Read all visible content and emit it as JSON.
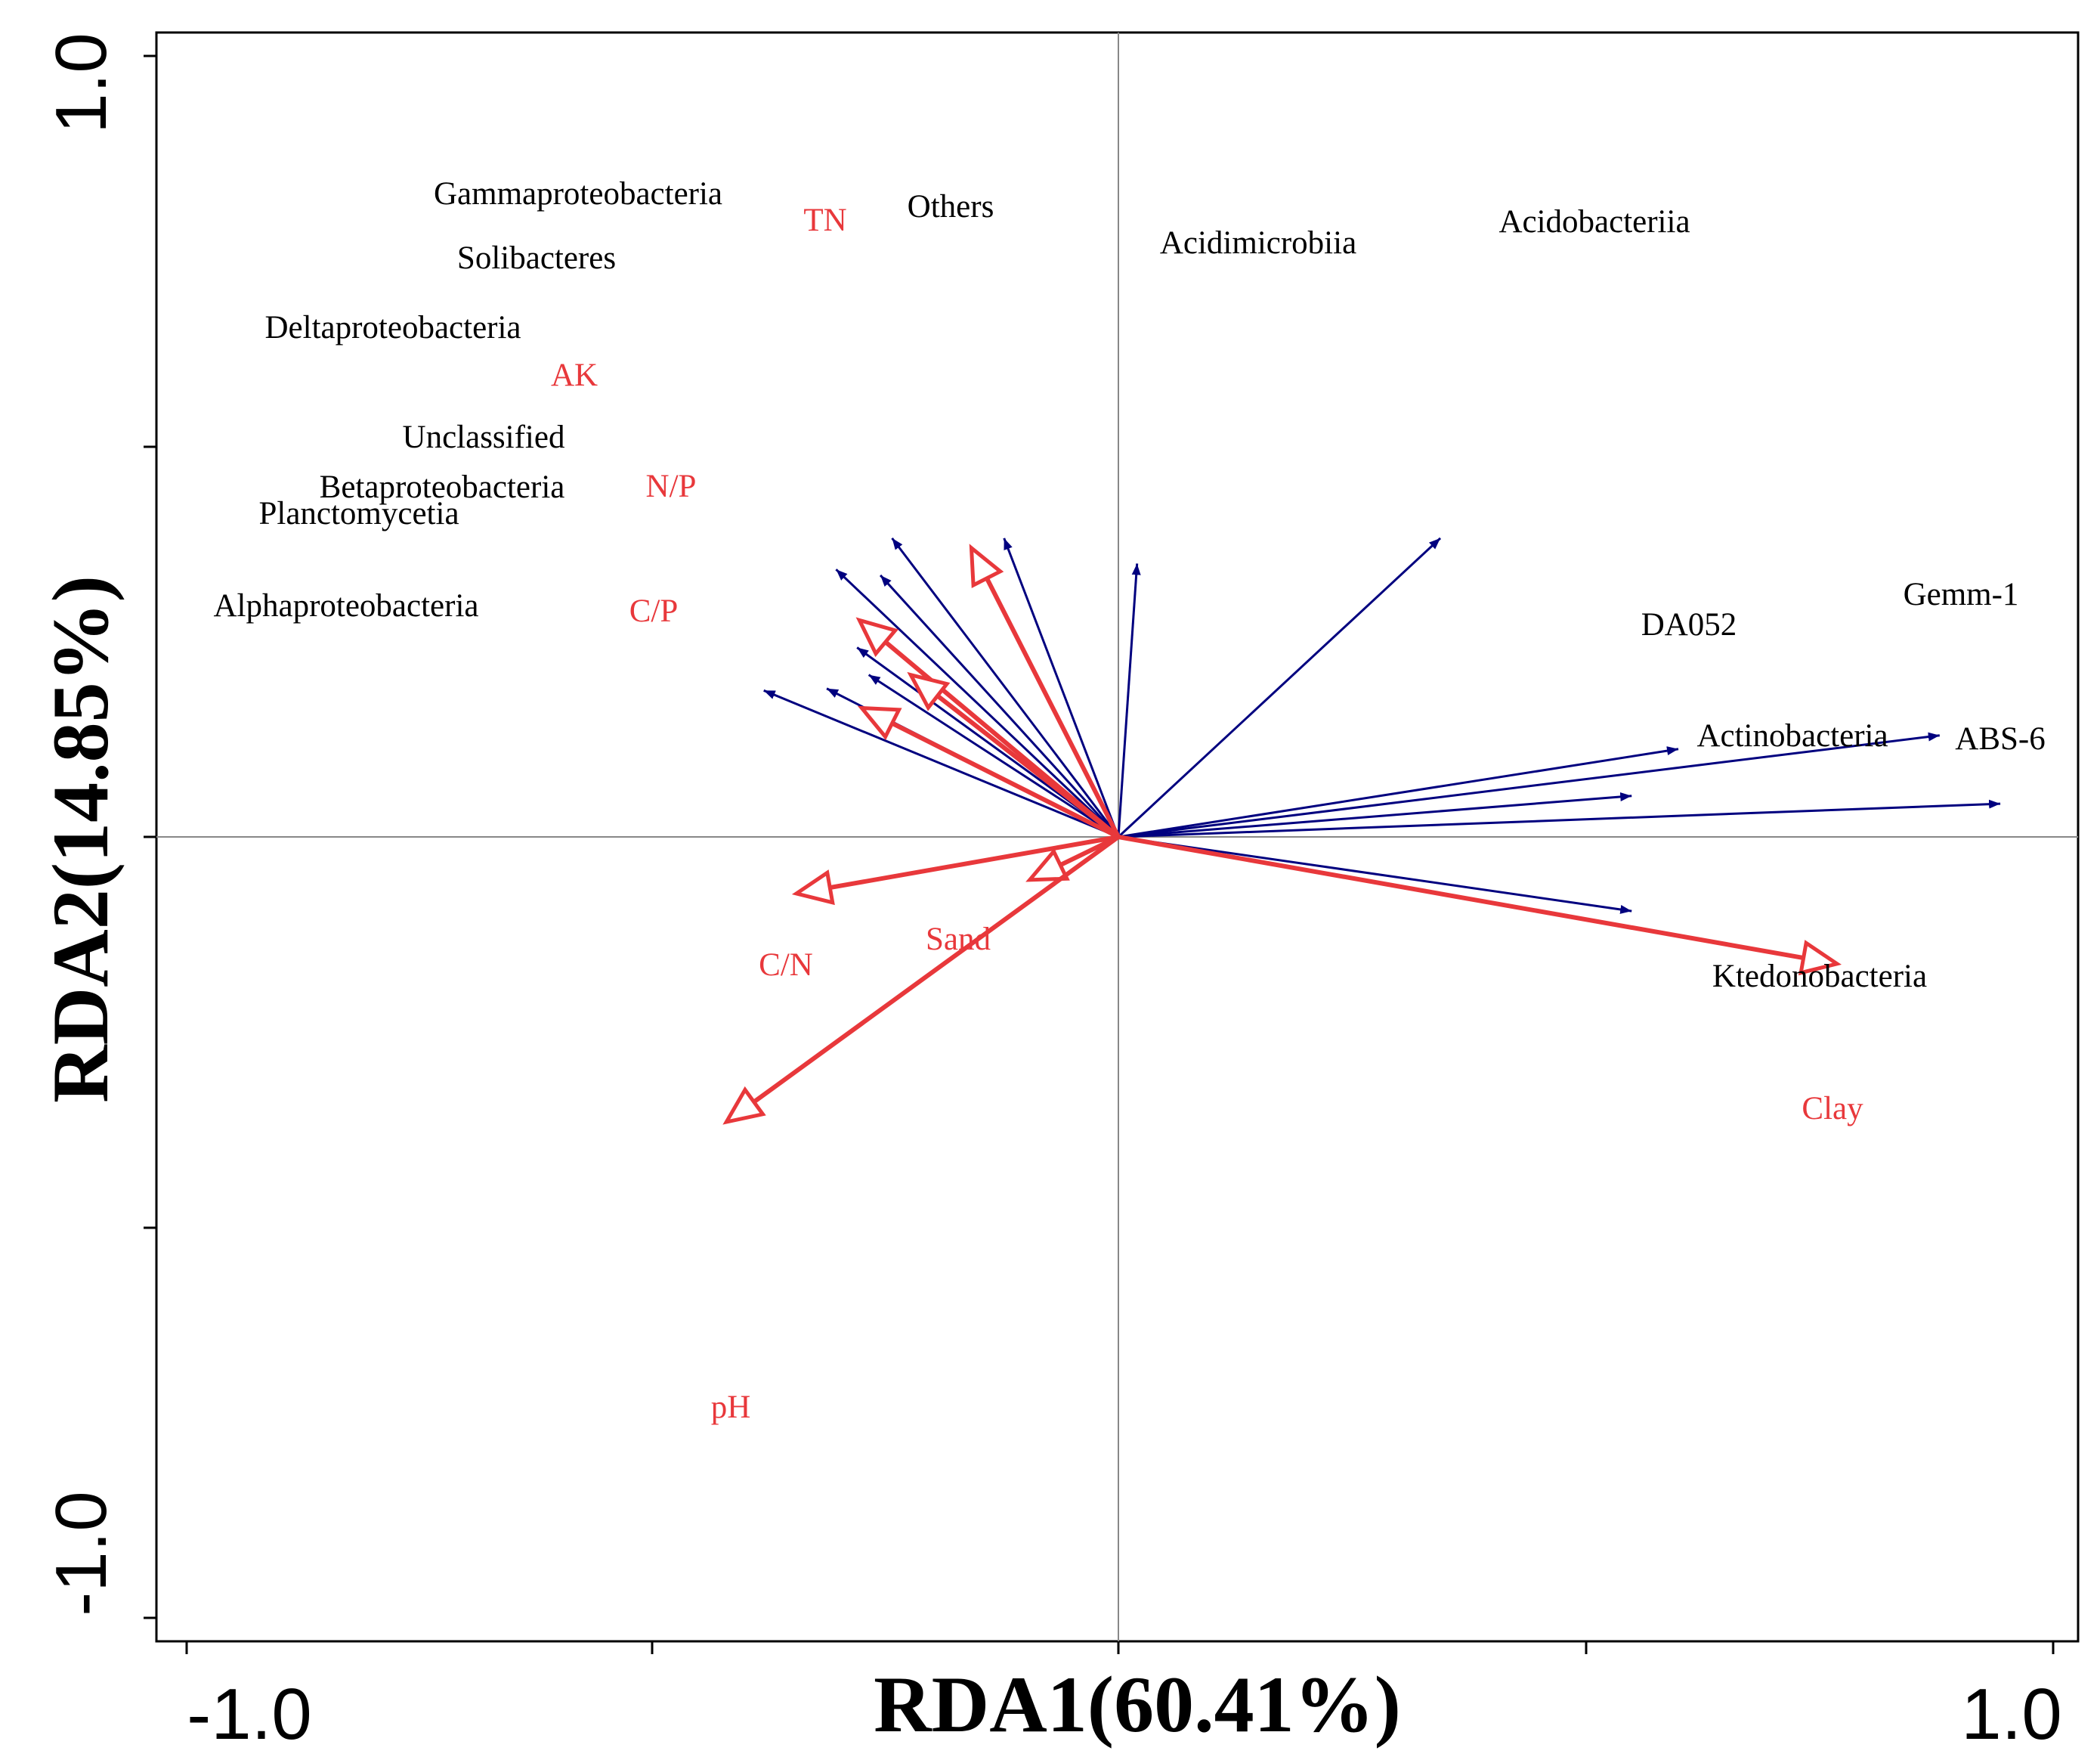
{
  "chart_data": {
    "type": "scatter",
    "subtype": "rda-biplot",
    "x_axis": {
      "title": "RDA1(60.41%)",
      "range": [
        -1.0,
        1.0
      ],
      "tick_labels": [
        "-1.0",
        "1.0"
      ]
    },
    "y_axis": {
      "title": "RDA2(14.85%)",
      "range": [
        -1.0,
        1.0
      ],
      "tick_labels": [
        "-1.0",
        "1.0"
      ]
    },
    "grid": false,
    "origin_lines": true,
    "colors": {
      "species": "#00007f",
      "environment": "#e8383b",
      "frame": "#000000",
      "origin_lines": "#888888"
    },
    "species": [
      {
        "name": "Gammaproteobacteria",
        "x": -0.485,
        "y": 0.765
      },
      {
        "name": "Solibacteres",
        "x": -0.51,
        "y": 0.67
      },
      {
        "name": "Deltaproteobacteria",
        "x": -0.605,
        "y": 0.685
      },
      {
        "name": "Unclassified",
        "x": -0.56,
        "y": 0.485
      },
      {
        "name": "Betaproteobacteria",
        "x": -0.535,
        "y": 0.415
      },
      {
        "name": "Planctomycetia",
        "x": -0.625,
        "y": 0.38
      },
      {
        "name": "Alphaproteobacteria",
        "x": -0.76,
        "y": 0.375
      },
      {
        "name": "Others",
        "x": -0.245,
        "y": 0.765
      },
      {
        "name": "Acidimicrobiia",
        "x": 0.04,
        "y": 0.7
      },
      {
        "name": "Acidobacteriia",
        "x": 0.69,
        "y": 0.765
      },
      {
        "name": "DA052",
        "x": 1.2,
        "y": 0.225
      },
      {
        "name": "Gemm-1",
        "x": 1.76,
        "y": 0.26
      },
      {
        "name": "Actinobacteria",
        "x": 1.1,
        "y": 0.105
      },
      {
        "name": "ABS-6",
        "x": 1.89,
        "y": 0.085
      },
      {
        "name": "Ktedonobacteria",
        "x": 1.1,
        "y": -0.19
      }
    ],
    "environment": [
      {
        "name": "TN",
        "x": -0.315,
        "y": 0.74
      },
      {
        "name": "AK",
        "x": -0.555,
        "y": 0.555
      },
      {
        "name": "N/P",
        "x": -0.445,
        "y": 0.415
      },
      {
        "name": "C/P",
        "x": -0.55,
        "y": 0.33
      },
      {
        "name": "C/N",
        "x": -0.69,
        "y": -0.145
      },
      {
        "name": "Sand",
        "x": -0.19,
        "y": -0.11
      },
      {
        "name": "pH",
        "x": -0.84,
        "y": -0.73
      },
      {
        "name": "Clay",
        "x": 1.54,
        "y": -0.325
      }
    ]
  }
}
